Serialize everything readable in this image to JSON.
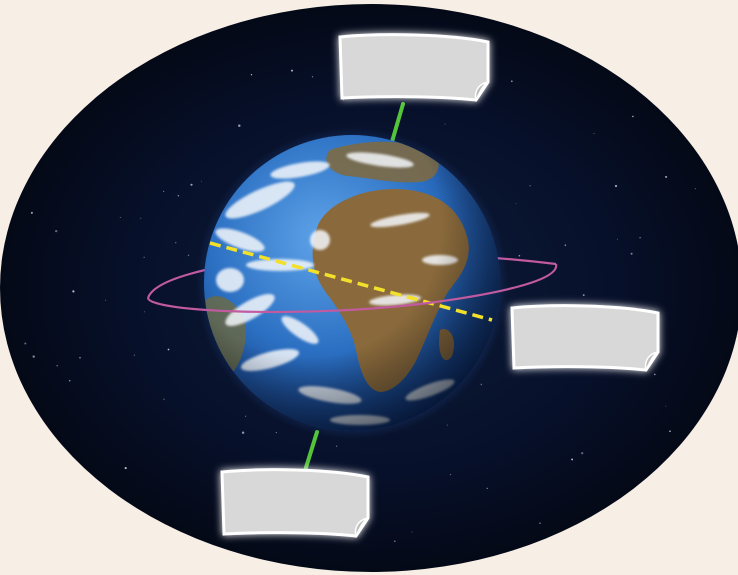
{
  "background_color": "#f7efe6",
  "space_color": "#05070f",
  "axis_color": "#54c43a",
  "orbit_color": "#c25aa0",
  "equator_color": "#f2e02a",
  "ocean_color": "#2b6fc2",
  "land_color": "#8a6a3c",
  "cloud_color": "#f4f7fb",
  "label_box_fill": "#d8d8d8",
  "label_box_glow": "#ffffff",
  "labels": {
    "north_pole_label": "",
    "orbit_label": "",
    "south_pole_label": ""
  }
}
